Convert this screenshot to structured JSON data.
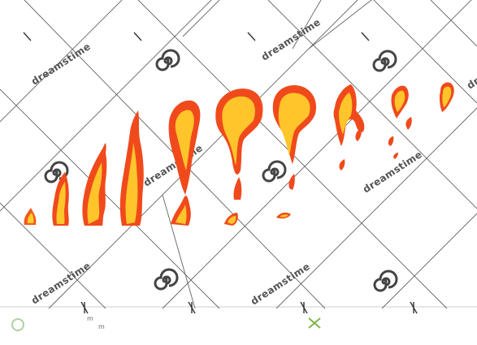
{
  "image": {
    "subject": "fire-animation-frames",
    "frame_count": 12
  },
  "watermark": {
    "text": "dreamstime",
    "icon": "spiral-icon",
    "color": "#444444"
  },
  "footer": {
    "line1": "m",
    "line2": "m"
  },
  "palette": {
    "flame_outer": "#f04a1c",
    "flame_mid": "#ff9a1a",
    "flame_inner": "#ffd23a",
    "grid_line": "#2f2f2f"
  }
}
